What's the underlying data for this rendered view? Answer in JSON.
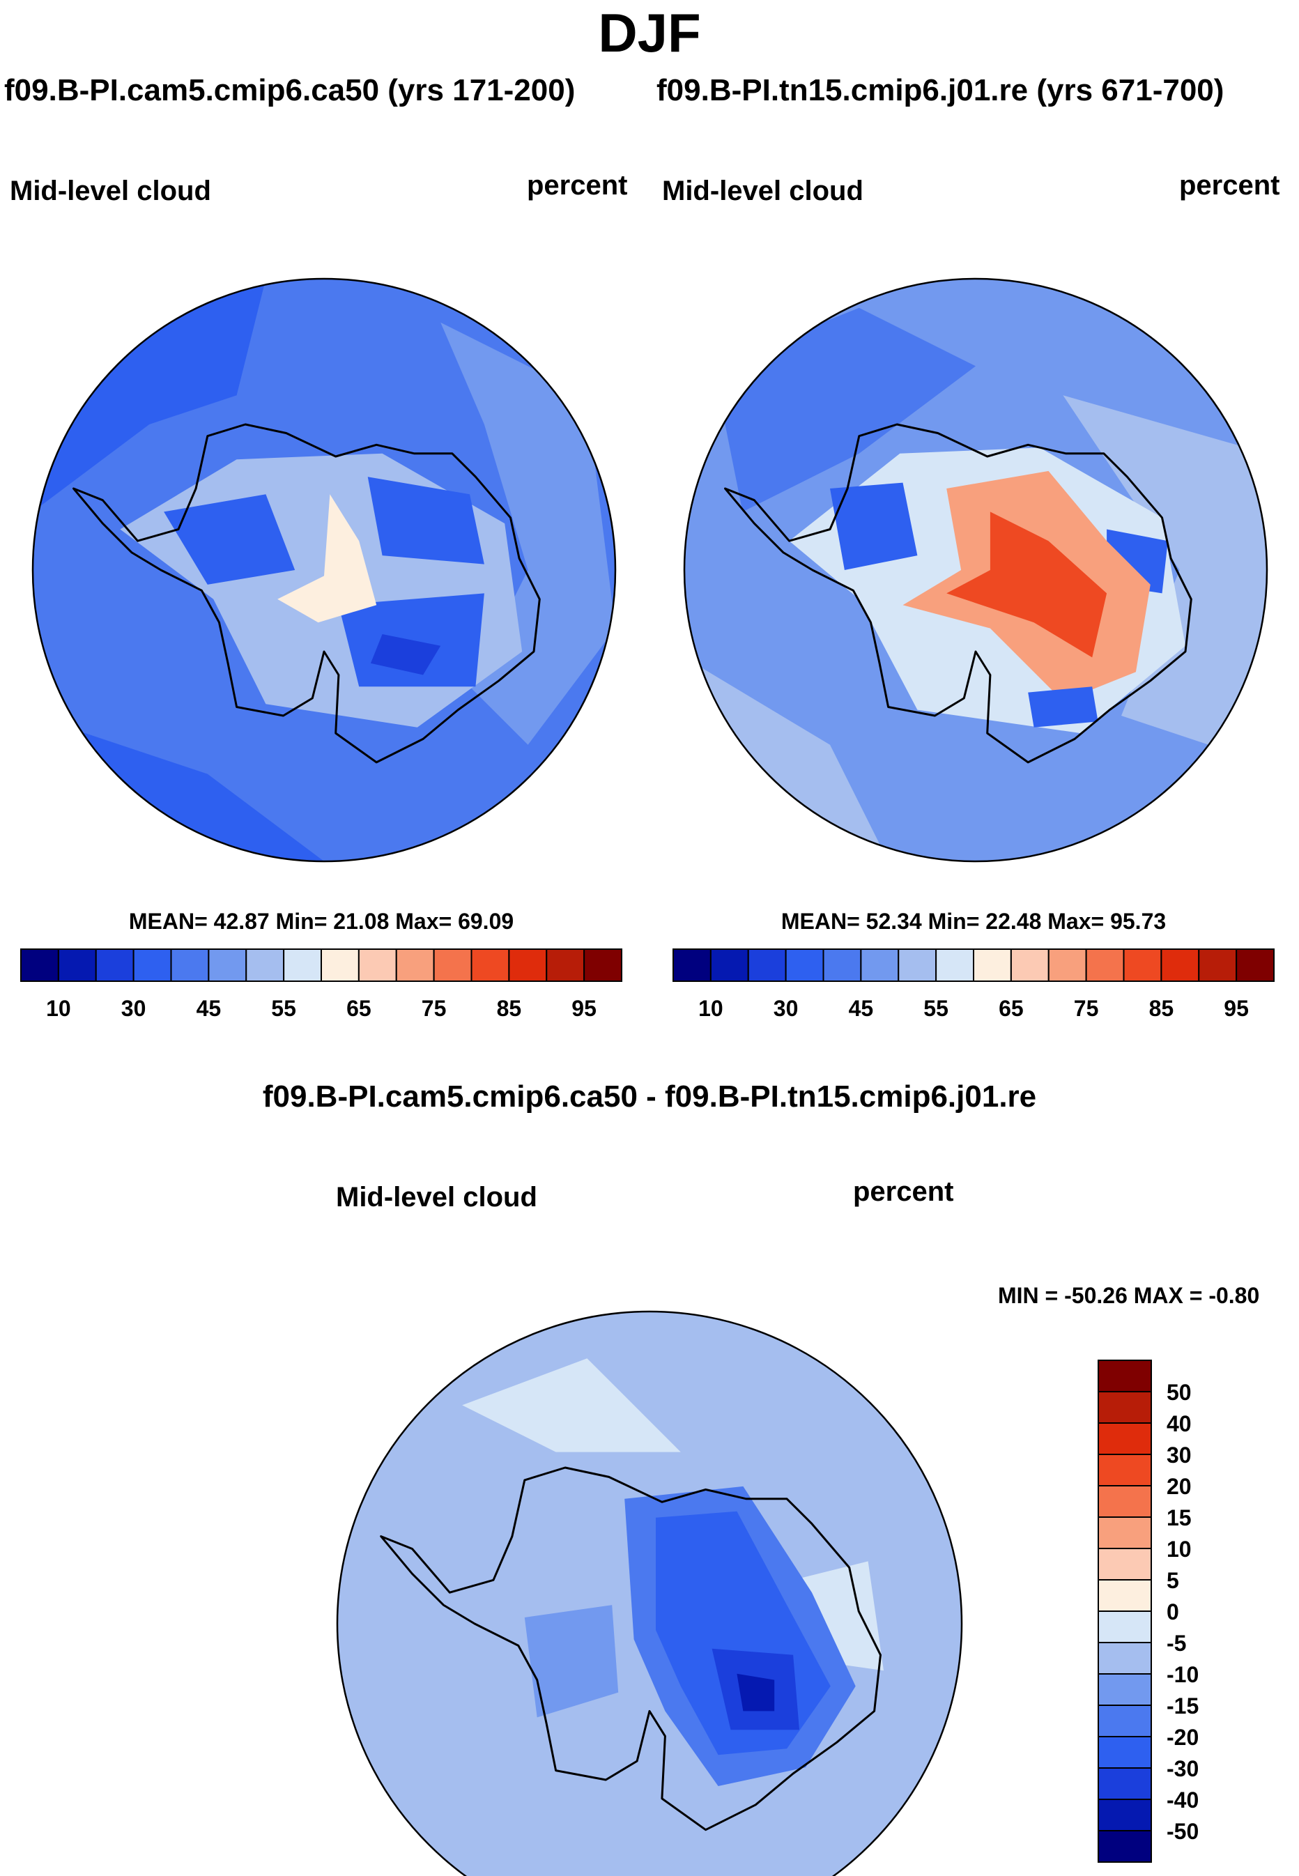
{
  "title": "DJF",
  "case1_label": "f09.B-PI.cam5.cmip6.ca50 (yrs 171-200)",
  "case2_label": "f09.B-PI.tn15.cmip6.j01.re (yrs 671-700)",
  "diff_label": "f09.B-PI.cam5.cmip6.ca50 - f09.B-PI.tn15.cmip6.j01.re",
  "chart_data": [
    {
      "type": "heatmap",
      "projection": "south-polar-stereographic",
      "variable": "Mid-level cloud",
      "units": "percent",
      "case": "f09.B-PI.cam5.cmip6.ca50 (yrs 171-200)",
      "stats_text": "MEAN=  42.87  Min=  21.08  Max=  69.09",
      "stats": {
        "mean": 42.87,
        "min": 21.08,
        "max": 69.09
      },
      "colorbar": {
        "orientation": "horizontal",
        "levels": [
          10,
          20,
          30,
          40,
          45,
          50,
          55,
          60,
          65,
          70,
          75,
          80,
          85,
          90,
          95
        ],
        "tick_labels": [
          "10",
          "30",
          "45",
          "55",
          "65",
          "75",
          "85",
          "95"
        ],
        "colors": [
          "#00007f",
          "#0519b1",
          "#1b3fdc",
          "#2e60f0",
          "#4b79ef",
          "#7299ef",
          "#a5beef",
          "#d6e6f7",
          "#fdefdf",
          "#fccab4",
          "#f8a07d",
          "#f4734c",
          "#ee4922",
          "#df2c0c",
          "#b71d08",
          "#7f0000"
        ]
      }
    },
    {
      "type": "heatmap",
      "projection": "south-polar-stereographic",
      "variable": "Mid-level cloud",
      "units": "percent",
      "case": "f09.B-PI.tn15.cmip6.j01.re (yrs 671-700)",
      "stats_text": "MEAN=  52.34  Min=  22.48  Max=  95.73",
      "stats": {
        "mean": 52.34,
        "min": 22.48,
        "max": 95.73
      },
      "colorbar": {
        "orientation": "horizontal",
        "levels": [
          10,
          20,
          30,
          40,
          45,
          50,
          55,
          60,
          65,
          70,
          75,
          80,
          85,
          90,
          95
        ],
        "tick_labels": [
          "10",
          "30",
          "45",
          "55",
          "65",
          "75",
          "85",
          "95"
        ],
        "colors": [
          "#00007f",
          "#0519b1",
          "#1b3fdc",
          "#2e60f0",
          "#4b79ef",
          "#7299ef",
          "#a5beef",
          "#d6e6f7",
          "#fdefdf",
          "#fccab4",
          "#f8a07d",
          "#f4734c",
          "#ee4922",
          "#df2c0c",
          "#b71d08",
          "#7f0000"
        ]
      }
    },
    {
      "type": "heatmap",
      "projection": "south-polar-stereographic",
      "variable": "Mid-level cloud",
      "units": "percent",
      "case": "f09.B-PI.cam5.cmip6.ca50 - f09.B-PI.tn15.cmip6.j01.re",
      "stats_text": "MIN = -50.26 MAX =  -0.80",
      "stats": {
        "min": -50.26,
        "max": -0.8
      },
      "colorbar": {
        "orientation": "vertical",
        "levels": [
          -50,
          -40,
          -30,
          -20,
          -15,
          -10,
          -5,
          0,
          5,
          10,
          15,
          20,
          30,
          40,
          50
        ],
        "tick_labels": [
          "-50",
          "-40",
          "-30",
          "-20",
          "-15",
          "-10",
          "-5",
          "0",
          "5",
          "10",
          "15",
          "20",
          "30",
          "40",
          "50"
        ],
        "colors": [
          "#00007f",
          "#0519b1",
          "#1b3fdc",
          "#2e60f0",
          "#4b79ef",
          "#7299ef",
          "#a5beef",
          "#d6e6f7",
          "#fdefdf",
          "#fccab4",
          "#f8a07d",
          "#f4734c",
          "#ee4922",
          "#df2c0c",
          "#b71d08",
          "#7f0000"
        ]
      }
    }
  ]
}
